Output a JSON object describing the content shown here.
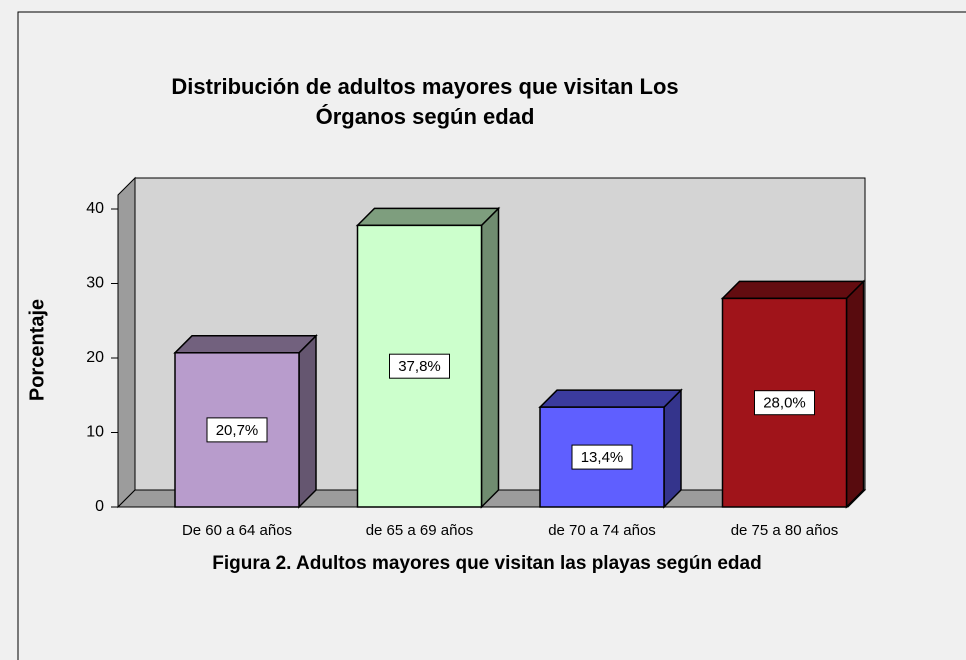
{
  "chart_data": {
    "type": "bar3d",
    "title": [
      "Distribución de adultos mayores que visitan Los",
      "Órganos según edad"
    ],
    "ylabel": "Porcentaje",
    "caption": "Figura 2. Adultos mayores que visitan las playas según edad",
    "categories": [
      "De 60 a 64 años",
      "de 65 a 69 años",
      "de 70 a 74 años",
      "de 75 a 80 años"
    ],
    "values": [
      20.7,
      37.8,
      13.4,
      28.0
    ],
    "value_labels": [
      "20,7%",
      "37,8%",
      "13,4%",
      "28,0%"
    ],
    "colors": [
      "#b89ccc",
      "#ccffcc",
      "#5f5fff",
      "#a0141a"
    ],
    "ylim": [
      0,
      40
    ],
    "yticks": [
      0,
      10,
      20,
      30,
      40
    ],
    "grid": false
  }
}
